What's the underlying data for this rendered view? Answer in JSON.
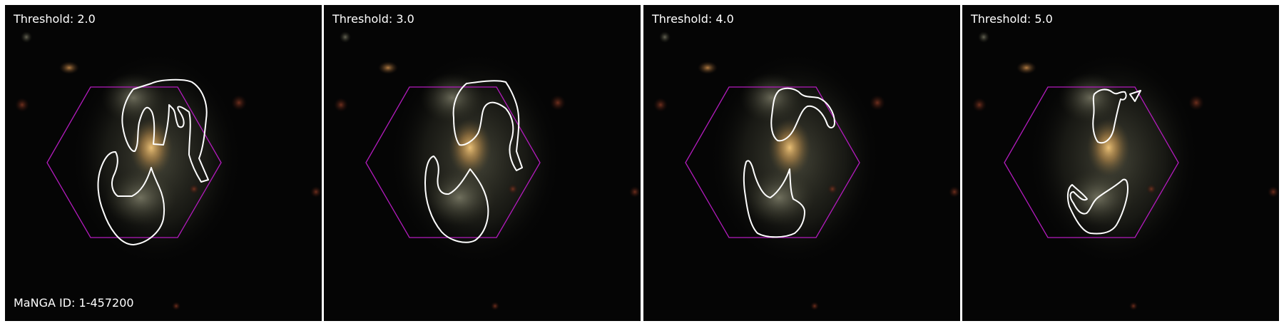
{
  "panels": [
    {
      "threshold_label": "Threshold: 2.0"
    },
    {
      "threshold_label": "Threshold: 3.0"
    },
    {
      "threshold_label": "Threshold: 4.0"
    },
    {
      "threshold_label": "Threshold: 5.0"
    }
  ],
  "galaxy_id_label": "MaNGA ID: 1-457200",
  "colors": {
    "background": "#050505",
    "hexagon": "#b31bbd",
    "contour": "#ffffff",
    "galaxy_core": "#d9a655",
    "galaxy_arm": "#8a8a6a",
    "divider": "#ffffff"
  }
}
